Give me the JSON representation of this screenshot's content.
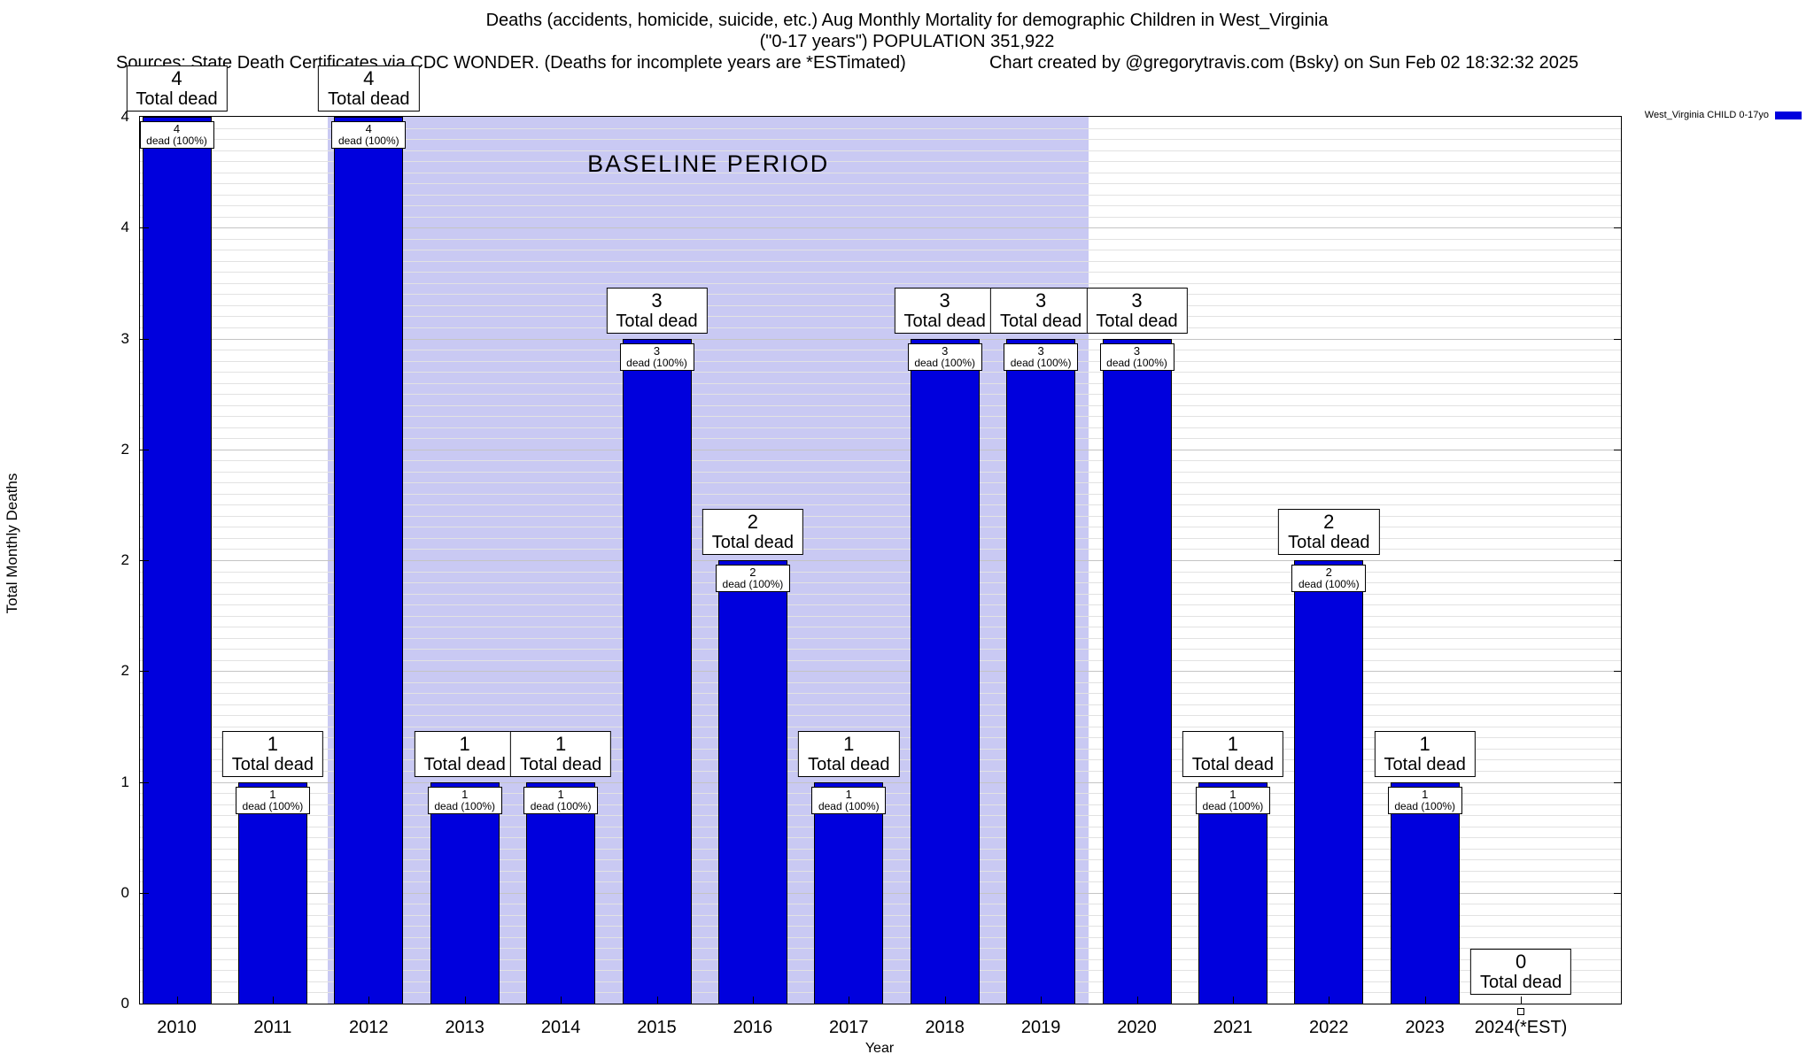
{
  "header": {
    "title_line1": "Deaths (accidents, homicide, suicide, etc.) Aug Monthly Mortality for demographic Children in West_Virginia",
    "title_line2": "(\"0-17 years\") POPULATION 351,922",
    "sources_line": "Sources: State Death Certificates via CDC WONDER. (Deaths for incomplete years are *ESTimated)",
    "credit_line": "Chart created by @gregorytravis.com (Bsky) on Sun Feb 02 18:32:32 2025"
  },
  "legend": {
    "label": "West_Virginia CHILD 0-17yo",
    "swatch_color": "#0000dd"
  },
  "chart_data": {
    "type": "bar",
    "title": "Deaths (accidents, homicide, suicide, etc.) Aug Monthly Mortality for demographic Children in West_Virginia (\"0-17 years\") POPULATION 351,922",
    "xlabel": "Year",
    "ylabel": "Total Monthly Deaths",
    "ylim": [
      0,
      4
    ],
    "ytick_values": [
      0,
      0.5,
      1,
      1.5,
      2,
      2.5,
      3,
      3.5,
      4
    ],
    "ytick_labels": [
      "0",
      "0",
      "1",
      "2",
      "2",
      "2",
      "3",
      "4",
      "4"
    ],
    "categories": [
      "2010",
      "2011",
      "2012",
      "2013",
      "2014",
      "2015",
      "2016",
      "2017",
      "2018",
      "2019",
      "2020",
      "2021",
      "2022",
      "2023",
      "2024(*EST)"
    ],
    "values": [
      4,
      1,
      4,
      1,
      1,
      3,
      2,
      1,
      3,
      3,
      3,
      1,
      2,
      1,
      0
    ],
    "series_name": "West_Virginia CHILD 0-17yo",
    "bar_color": "#0000dd",
    "bar_total_label": "Total dead",
    "bar_inner_label": "dead (100%)",
    "annotation": {
      "text": "BASELINE PERIOD",
      "band_start_year": "2012",
      "band_end_year": "2019",
      "band_color": "#c9c9f3"
    },
    "grid": true,
    "legend_position": "top-right"
  }
}
